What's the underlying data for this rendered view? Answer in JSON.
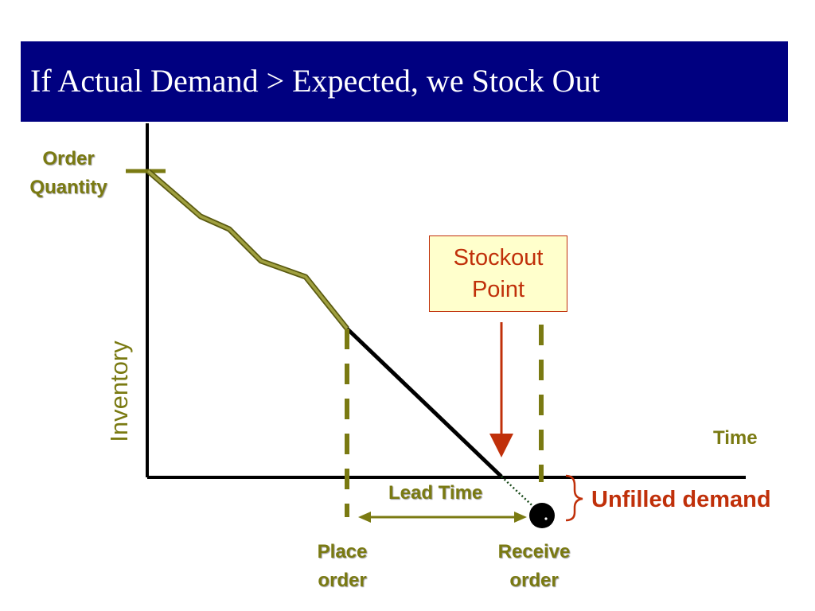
{
  "title": "If Actual Demand > Expected, we Stock Out",
  "labels": {
    "order_quantity_line1": "Order",
    "order_quantity_line2": "Quantity",
    "inventory": "Inventory",
    "time": "Time",
    "stockout_line1": "Stockout",
    "stockout_line2": "Point",
    "lead_time": "Lead Time",
    "place_order_line1": "Place",
    "place_order_line2": "order",
    "receive_order_line1": "Receive",
    "receive_order_line2": "order",
    "unfilled_demand": "Unfilled demand"
  },
  "colors": {
    "title_bar": "#000080",
    "olive": "#7a7a12",
    "demand_line": "#8a8a2e",
    "accent_red": "#c0300a",
    "stockout_fill": "#ffffcc"
  }
}
